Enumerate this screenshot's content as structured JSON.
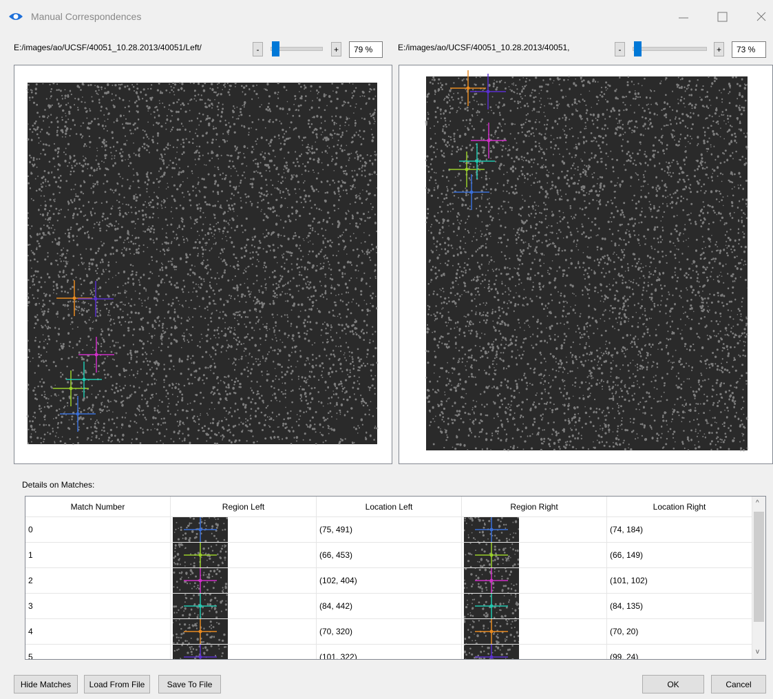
{
  "window": {
    "title": "Manual Correspondences"
  },
  "left_panel": {
    "path": "E:/images/ao/UCSF/40051_10.28.2013/40051/Left/",
    "minus": "-",
    "plus": "+",
    "zoom": "79 %"
  },
  "right_panel": {
    "path": "E:/images/ao/UCSF/40051_10.28.2013/40051,",
    "minus": "-",
    "plus": "+",
    "zoom": "73 %"
  },
  "details_label": "Details on Matches:",
  "table": {
    "columns": [
      "Match Number",
      "Region Left",
      "Location Left",
      "Region Right",
      "Location Right"
    ],
    "rows": [
      [
        "0",
        "(75, 491)",
        "(74, 184)"
      ],
      [
        "1",
        "(66, 453)",
        "(66, 149)"
      ],
      [
        "2",
        "(102, 404)",
        "(101, 102)"
      ],
      [
        "3",
        "(84, 442)",
        "(84, 135)"
      ],
      [
        "4",
        "(70, 320)",
        "(70, 20)"
      ],
      [
        "5",
        "(101, 322)",
        "(99, 24)"
      ]
    ]
  },
  "buttons": [
    "Hide Matches",
    "Load From File",
    "Save To File",
    "OK",
    "Cancel"
  ]
}
